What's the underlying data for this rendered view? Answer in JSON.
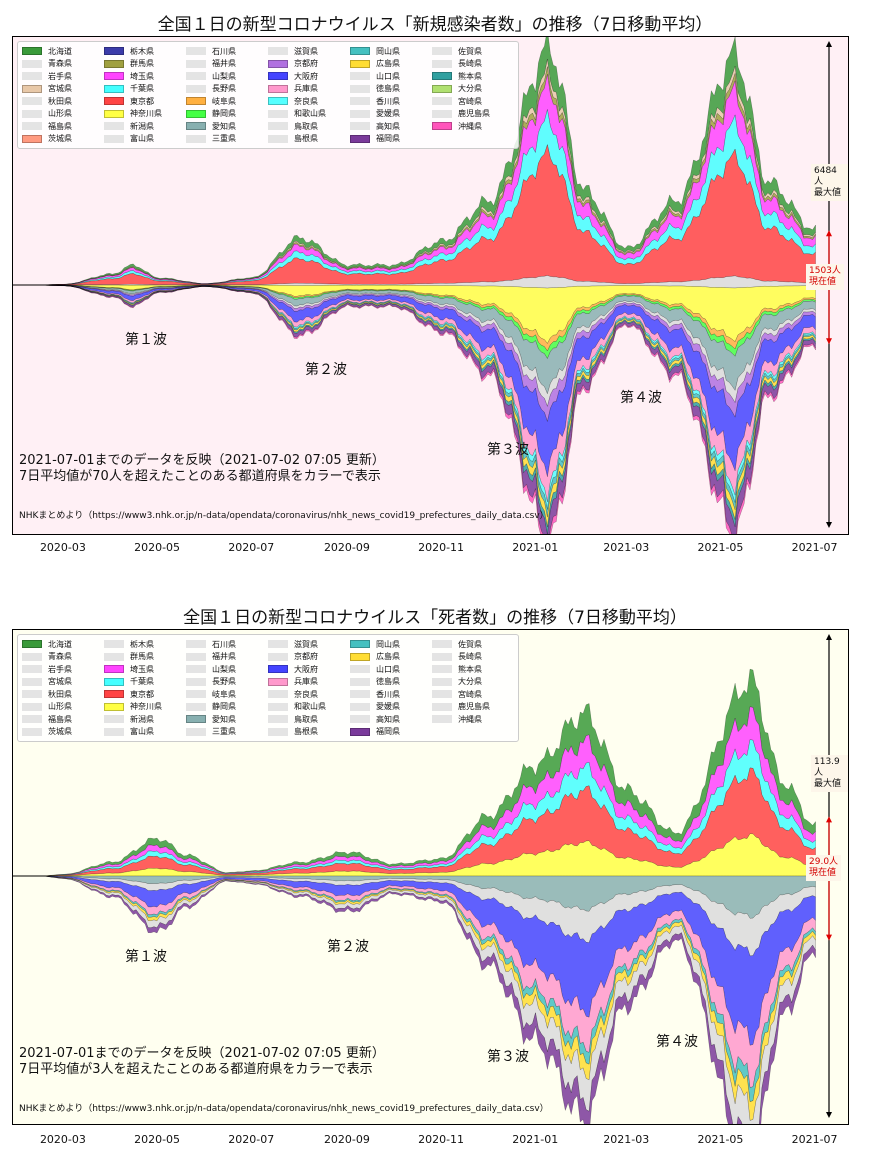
{
  "colors": {
    "bg_top": "#fff0f5",
    "bg_bottom": "#fffff0",
    "current_arrow": "#e00000",
    "max_arrow": "#000000",
    "pref": {
      "北海道": "#3a9a3a",
      "栃木県": "#3c3caa",
      "群馬県": "#a0a040",
      "埼玉県": "#ff44ff",
      "千葉県": "#44ffff",
      "東京都": "#ff4444",
      "神奈川県": "#ffff44",
      "岐阜県": "#ffb040",
      "静岡県": "#44ff44",
      "愛知県": "#88b0b0",
      "京都府": "#b070e0",
      "大阪府": "#4444ff",
      "兵庫県": "#ff99cc",
      "奈良県": "#55ffff",
      "岡山県": "#44c0c0",
      "広島県": "#ffdd33",
      "福岡県": "#7a3a9a",
      "熊本県": "#30a0a0",
      "大分県": "#b0e070",
      "沖縄県": "#ff55bb",
      "other": "#dddddd"
    }
  },
  "x_ticks": [
    "2020-03",
    "2020-05",
    "2020-07",
    "2020-09",
    "2020-11",
    "2021-01",
    "2021-03",
    "2021-05",
    "2021-07"
  ],
  "charts": [
    {
      "id": "cases",
      "title": "全国１日の新型コロナウイルス「新規感染者数」の推移（7日移動平均）",
      "legend": [
        "北海道",
        "青森県",
        "岩手県",
        "宮城県",
        "秋田県",
        "山形県",
        "福島県",
        "茨城県",
        "栃木県",
        "群馬県",
        "埼玉県",
        "千葉県",
        "東京都",
        "神奈川県",
        "新潟県",
        "富山県",
        "石川県",
        "福井県",
        "山梨県",
        "長野県",
        "岐阜県",
        "静岡県",
        "愛知県",
        "三重県",
        "滋賀県",
        "京都府",
        "大阪府",
        "兵庫県",
        "奈良県",
        "和歌山県",
        "鳥取県",
        "島根県",
        "岡山県",
        "広島県",
        "山口県",
        "徳島県",
        "香川県",
        "愛媛県",
        "高知県",
        "福岡県",
        "佐賀県",
        "長崎県",
        "熊本県",
        "大分県",
        "宮崎県",
        "鹿児島県",
        "沖縄県"
      ],
      "colored": [
        "北海道",
        "茨城県",
        "宮城県",
        "栃木県",
        "群馬県",
        "埼玉県",
        "千葉県",
        "東京都",
        "神奈川県",
        "岐阜県",
        "静岡県",
        "愛知県",
        "京都府",
        "大阪府",
        "兵庫県",
        "奈良県",
        "岡山県",
        "広島県",
        "福岡県",
        "熊本県",
        "大分県",
        "沖縄県"
      ],
      "extra_colors": {
        "宮城県": "#e8c8a8",
        "茨城県": "#ff9a80"
      },
      "waves": [
        "第１波",
        "第２波",
        "第３波",
        "第４波"
      ],
      "note_line1": "2021-07-01までのデータを反映（2021-07-02 07:05 更新）",
      "note_line2": "7日平均値が70人を超えたことのある都道府県をカラーで表示",
      "source": "NHKまとめより（https://www3.nhk.or.jp/n-data/opendata/coronavirus/nhk_news_covid19_prefectures_daily_data.csv）",
      "max_value_label": "6484人",
      "max_label": "最大値",
      "current_value_label": "1503人",
      "current_label": "現在値",
      "chart_data": {
        "type": "area",
        "subtype": "streamgraph",
        "x": [
          "2020-02-15",
          "2020-03-01",
          "2020-04-01",
          "2020-04-15",
          "2020-05-01",
          "2020-06-01",
          "2020-07-01",
          "2020-08-01",
          "2020-09-01",
          "2020-10-01",
          "2020-11-01",
          "2020-12-01",
          "2021-01-10",
          "2021-02-01",
          "2021-03-01",
          "2021-04-01",
          "2021-05-10",
          "2021-06-01",
          "2021-07-01"
        ],
        "total": [
          5,
          20,
          300,
          550,
          200,
          40,
          200,
          1300,
          550,
          550,
          1200,
          2300,
          6484,
          2600,
          1000,
          2300,
          6300,
          2800,
          1503
        ],
        "ymax": 6484
      }
    },
    {
      "id": "deaths",
      "title": "全国１日の新型コロナウイルス「死者数」の推移（7日移動平均）",
      "legend": [
        "北海道",
        "青森県",
        "岩手県",
        "宮城県",
        "秋田県",
        "山形県",
        "福島県",
        "茨城県",
        "栃木県",
        "群馬県",
        "埼玉県",
        "千葉県",
        "東京都",
        "神奈川県",
        "新潟県",
        "富山県",
        "石川県",
        "福井県",
        "山梨県",
        "長野県",
        "岐阜県",
        "静岡県",
        "愛知県",
        "三重県",
        "滋賀県",
        "京都府",
        "大阪府",
        "兵庫県",
        "奈良県",
        "和歌山県",
        "鳥取県",
        "島根県",
        "岡山県",
        "広島県",
        "山口県",
        "徳島県",
        "香川県",
        "愛媛県",
        "高知県",
        "福岡県",
        "佐賀県",
        "長崎県",
        "熊本県",
        "大分県",
        "宮崎県",
        "鹿児島県",
        "沖縄県"
      ],
      "colored": [
        "北海道",
        "埼玉県",
        "千葉県",
        "東京都",
        "神奈川県",
        "愛知県",
        "大阪府",
        "兵庫県",
        "岡山県",
        "広島県",
        "福岡県"
      ],
      "extra_colors": {},
      "waves": [
        "第１波",
        "第２波",
        "第３波",
        "第４波"
      ],
      "note_line1": "2021-07-01までのデータを反映（2021-07-02 07:05 更新）",
      "note_line2": "7日平均値が3人を超えたことのある都道府県をカラーで表示",
      "source": "NHKまとめより（https://www3.nhk.or.jp/n-data/opendata/coronavirus/nhk_news_covid19_prefectures_daily_data.csv）",
      "max_value_label": "113.9人",
      "max_label": "最大値",
      "current_value_label": "29.0人",
      "current_label": "現在値",
      "chart_data": {
        "type": "area",
        "subtype": "streamgraph",
        "x": [
          "2020-02-15",
          "2020-03-01",
          "2020-04-01",
          "2020-05-01",
          "2020-05-20",
          "2020-06-15",
          "2020-07-01",
          "2020-08-01",
          "2020-09-01",
          "2020-10-01",
          "2020-11-01",
          "2020-12-01",
          "2021-01-01",
          "2021-02-01",
          "2021-03-01",
          "2021-04-01",
          "2021-05-20",
          "2021-06-10",
          "2021-07-01"
        ],
        "total": [
          0,
          1,
          8,
          22,
          12,
          2,
          3,
          8,
          14,
          7,
          10,
          35,
          65,
          95,
          50,
          25,
          113.9,
          55,
          29.0
        ],
        "ymax": 113.9
      }
    }
  ]
}
